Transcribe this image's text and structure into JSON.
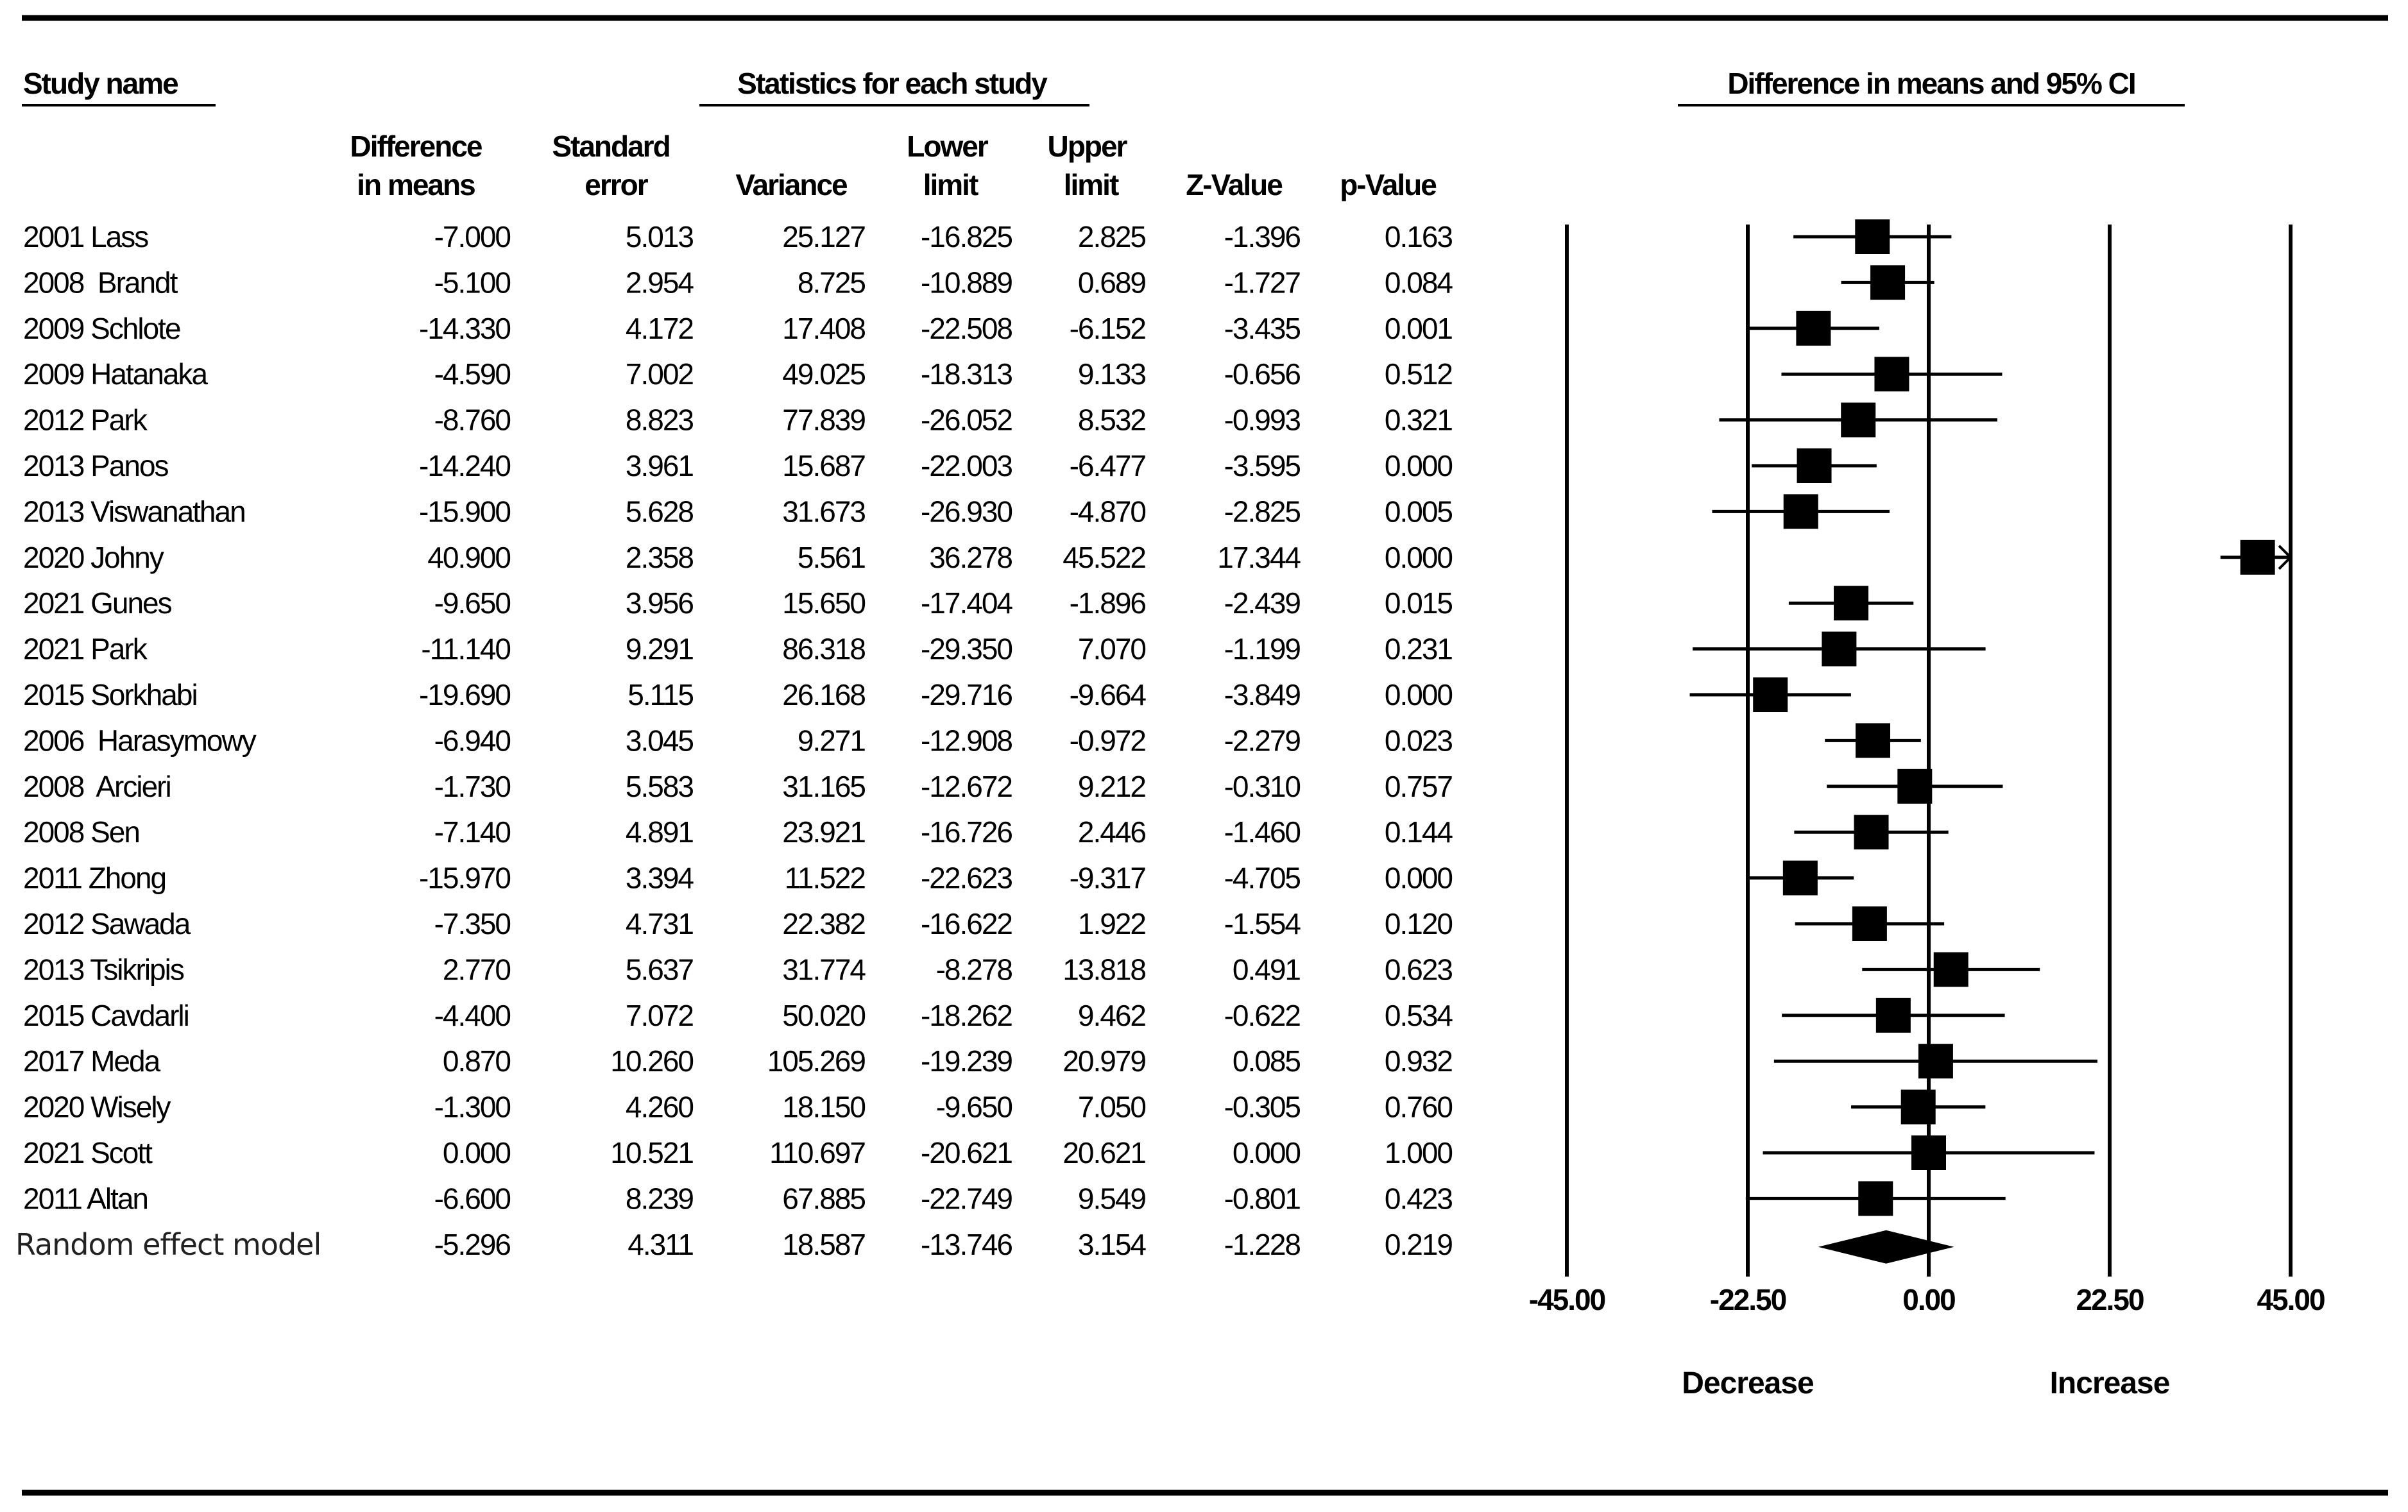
{
  "chart_data": {
    "type": "forest",
    "headers": {
      "study_name": "Study name",
      "stats_group": "Statistics for each study",
      "plot_title": "Difference in means and 95% CI",
      "columns": [
        {
          "line1": "Difference",
          "line2": "in means"
        },
        {
          "line1": "Standard",
          "line2": "error"
        },
        {
          "line1": "",
          "line2": "Variance"
        },
        {
          "line1": "Lower",
          "line2": "limit"
        },
        {
          "line1": "Upper",
          "line2": "limit"
        },
        {
          "line1": "",
          "line2": "Z-Value"
        },
        {
          "line1": "",
          "line2": "p-Value"
        }
      ]
    },
    "studies": [
      {
        "name": "2001 Lass",
        "diff": "-7.000",
        "se": "5.013",
        "variance": "25.127",
        "lower": "-16.825",
        "upper": "2.825",
        "z": "-1.396",
        "p": "0.163"
      },
      {
        "name": "2008  Brandt",
        "diff": "-5.100",
        "se": "2.954",
        "variance": "8.725",
        "lower": "-10.889",
        "upper": "0.689",
        "z": "-1.727",
        "p": "0.084"
      },
      {
        "name": "2009 Schlote",
        "diff": "-14.330",
        "se": "4.172",
        "variance": "17.408",
        "lower": "-22.508",
        "upper": "-6.152",
        "z": "-3.435",
        "p": "0.001"
      },
      {
        "name": "2009 Hatanaka",
        "diff": "-4.590",
        "se": "7.002",
        "variance": "49.025",
        "lower": "-18.313",
        "upper": "9.133",
        "z": "-0.656",
        "p": "0.512"
      },
      {
        "name": "2012 Park",
        "diff": "-8.760",
        "se": "8.823",
        "variance": "77.839",
        "lower": "-26.052",
        "upper": "8.532",
        "z": "-0.993",
        "p": "0.321"
      },
      {
        "name": "2013 Panos",
        "diff": "-14.240",
        "se": "3.961",
        "variance": "15.687",
        "lower": "-22.003",
        "upper": "-6.477",
        "z": "-3.595",
        "p": "0.000"
      },
      {
        "name": "2013 Viswanathan",
        "diff": "-15.900",
        "se": "5.628",
        "variance": "31.673",
        "lower": "-26.930",
        "upper": "-4.870",
        "z": "-2.825",
        "p": "0.005"
      },
      {
        "name": "2020 Johny",
        "diff": "40.900",
        "se": "2.358",
        "variance": "5.561",
        "lower": "36.278",
        "upper": "45.522",
        "z": "17.344",
        "p": "0.000"
      },
      {
        "name": "2021 Gunes",
        "diff": "-9.650",
        "se": "3.956",
        "variance": "15.650",
        "lower": "-17.404",
        "upper": "-1.896",
        "z": "-2.439",
        "p": "0.015"
      },
      {
        "name": "2021 Park",
        "diff": "-11.140",
        "se": "9.291",
        "variance": "86.318",
        "lower": "-29.350",
        "upper": "7.070",
        "z": "-1.199",
        "p": "0.231"
      },
      {
        "name": "2015 Sorkhabi",
        "diff": "-19.690",
        "se": "5.115",
        "variance": "26.168",
        "lower": "-29.716",
        "upper": "-9.664",
        "z": "-3.849",
        "p": "0.000"
      },
      {
        "name": "2006  Harasymowy",
        "diff": "-6.940",
        "se": "3.045",
        "variance": "9.271",
        "lower": "-12.908",
        "upper": "-0.972",
        "z": "-2.279",
        "p": "0.023"
      },
      {
        "name": "2008  Arcieri",
        "diff": "-1.730",
        "se": "5.583",
        "variance": "31.165",
        "lower": "-12.672",
        "upper": "9.212",
        "z": "-0.310",
        "p": "0.757"
      },
      {
        "name": "2008 Sen",
        "diff": "-7.140",
        "se": "4.891",
        "variance": "23.921",
        "lower": "-16.726",
        "upper": "2.446",
        "z": "-1.460",
        "p": "0.144"
      },
      {
        "name": "2011 Zhong",
        "diff": "-15.970",
        "se": "3.394",
        "variance": "11.522",
        "lower": "-22.623",
        "upper": "-9.317",
        "z": "-4.705",
        "p": "0.000"
      },
      {
        "name": "2012 Sawada",
        "diff": "-7.350",
        "se": "4.731",
        "variance": "22.382",
        "lower": "-16.622",
        "upper": "1.922",
        "z": "-1.554",
        "p": "0.120"
      },
      {
        "name": "2013 Tsikripis",
        "diff": "2.770",
        "se": "5.637",
        "variance": "31.774",
        "lower": "-8.278",
        "upper": "13.818",
        "z": "0.491",
        "p": "0.623"
      },
      {
        "name": "2015 Cavdarli",
        "diff": "-4.400",
        "se": "7.072",
        "variance": "50.020",
        "lower": "-18.262",
        "upper": "9.462",
        "z": "-0.622",
        "p": "0.534"
      },
      {
        "name": "2017 Meda",
        "diff": "0.870",
        "se": "10.260",
        "variance": "105.269",
        "lower": "-19.239",
        "upper": "20.979",
        "z": "0.085",
        "p": "0.932"
      },
      {
        "name": "2020 Wisely",
        "diff": "-1.300",
        "se": "4.260",
        "variance": "18.150",
        "lower": "-9.650",
        "upper": "7.050",
        "z": "-0.305",
        "p": "0.760"
      },
      {
        "name": "2021 Scott",
        "diff": "0.000",
        "se": "10.521",
        "variance": "110.697",
        "lower": "-20.621",
        "upper": "20.621",
        "z": "0.000",
        "p": "1.000"
      },
      {
        "name": "2011 Altan",
        "diff": "-6.600",
        "se": "8.239",
        "variance": "67.885",
        "lower": "-22.749",
        "upper": "9.549",
        "z": "-0.801",
        "p": "0.423"
      }
    ],
    "pooled": {
      "name": "Random effect model",
      "diff": "-5.296",
      "se": "4.311",
      "variance": "18.587",
      "lower": "-13.746",
      "upper": "3.154",
      "z": "-1.228",
      "p": "0.219"
    },
    "axis": {
      "xlim": [
        -45,
        45
      ],
      "ticks": [
        -45,
        -22.5,
        0,
        22.5,
        45
      ],
      "tick_labels": [
        "-45.00",
        "-22.50",
        "0.00",
        "22.50",
        "45.00"
      ],
      "left_label": "Decrease",
      "right_label": "Increase"
    }
  }
}
